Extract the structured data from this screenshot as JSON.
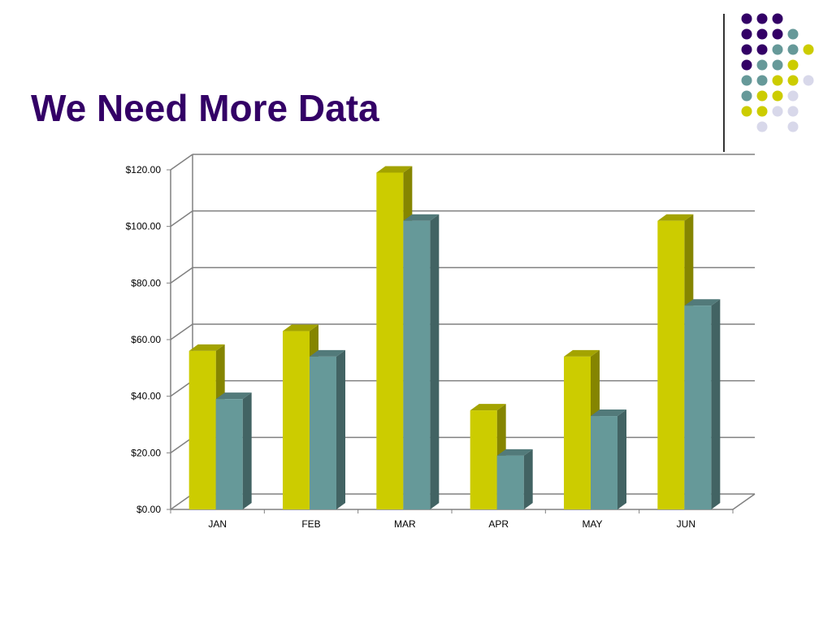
{
  "slide": {
    "title": "We Need More Data"
  },
  "decor": {
    "dot_colors": {
      "P": "#330066",
      "T": "#669999",
      "Y": "#cccc00",
      "L": "#d8d8ea"
    },
    "dot_grid": [
      "PPP ",
      "PPPT ",
      "PPTTY",
      "PTTY ",
      "TTYYL",
      "TYYL ",
      "YYLL ",
      " L L "
    ]
  },
  "chart_data": {
    "type": "bar",
    "categories": [
      "JAN",
      "FEB",
      "MAR",
      "APR",
      "MAY",
      "JUN"
    ],
    "series": [
      {
        "values": [
          56,
          63,
          119,
          35,
          54,
          102
        ],
        "color": "#cccc00"
      },
      {
        "values": [
          39,
          54,
          102,
          19,
          33,
          72
        ],
        "color": "#669999"
      }
    ],
    "ylim": [
      0,
      120
    ],
    "yticks": [
      "$0.00",
      "$20.00",
      "$40.00",
      "$60.00",
      "$80.00",
      "$100.00",
      "$120.00"
    ],
    "grid": true,
    "legend": "none",
    "style": "3d"
  }
}
